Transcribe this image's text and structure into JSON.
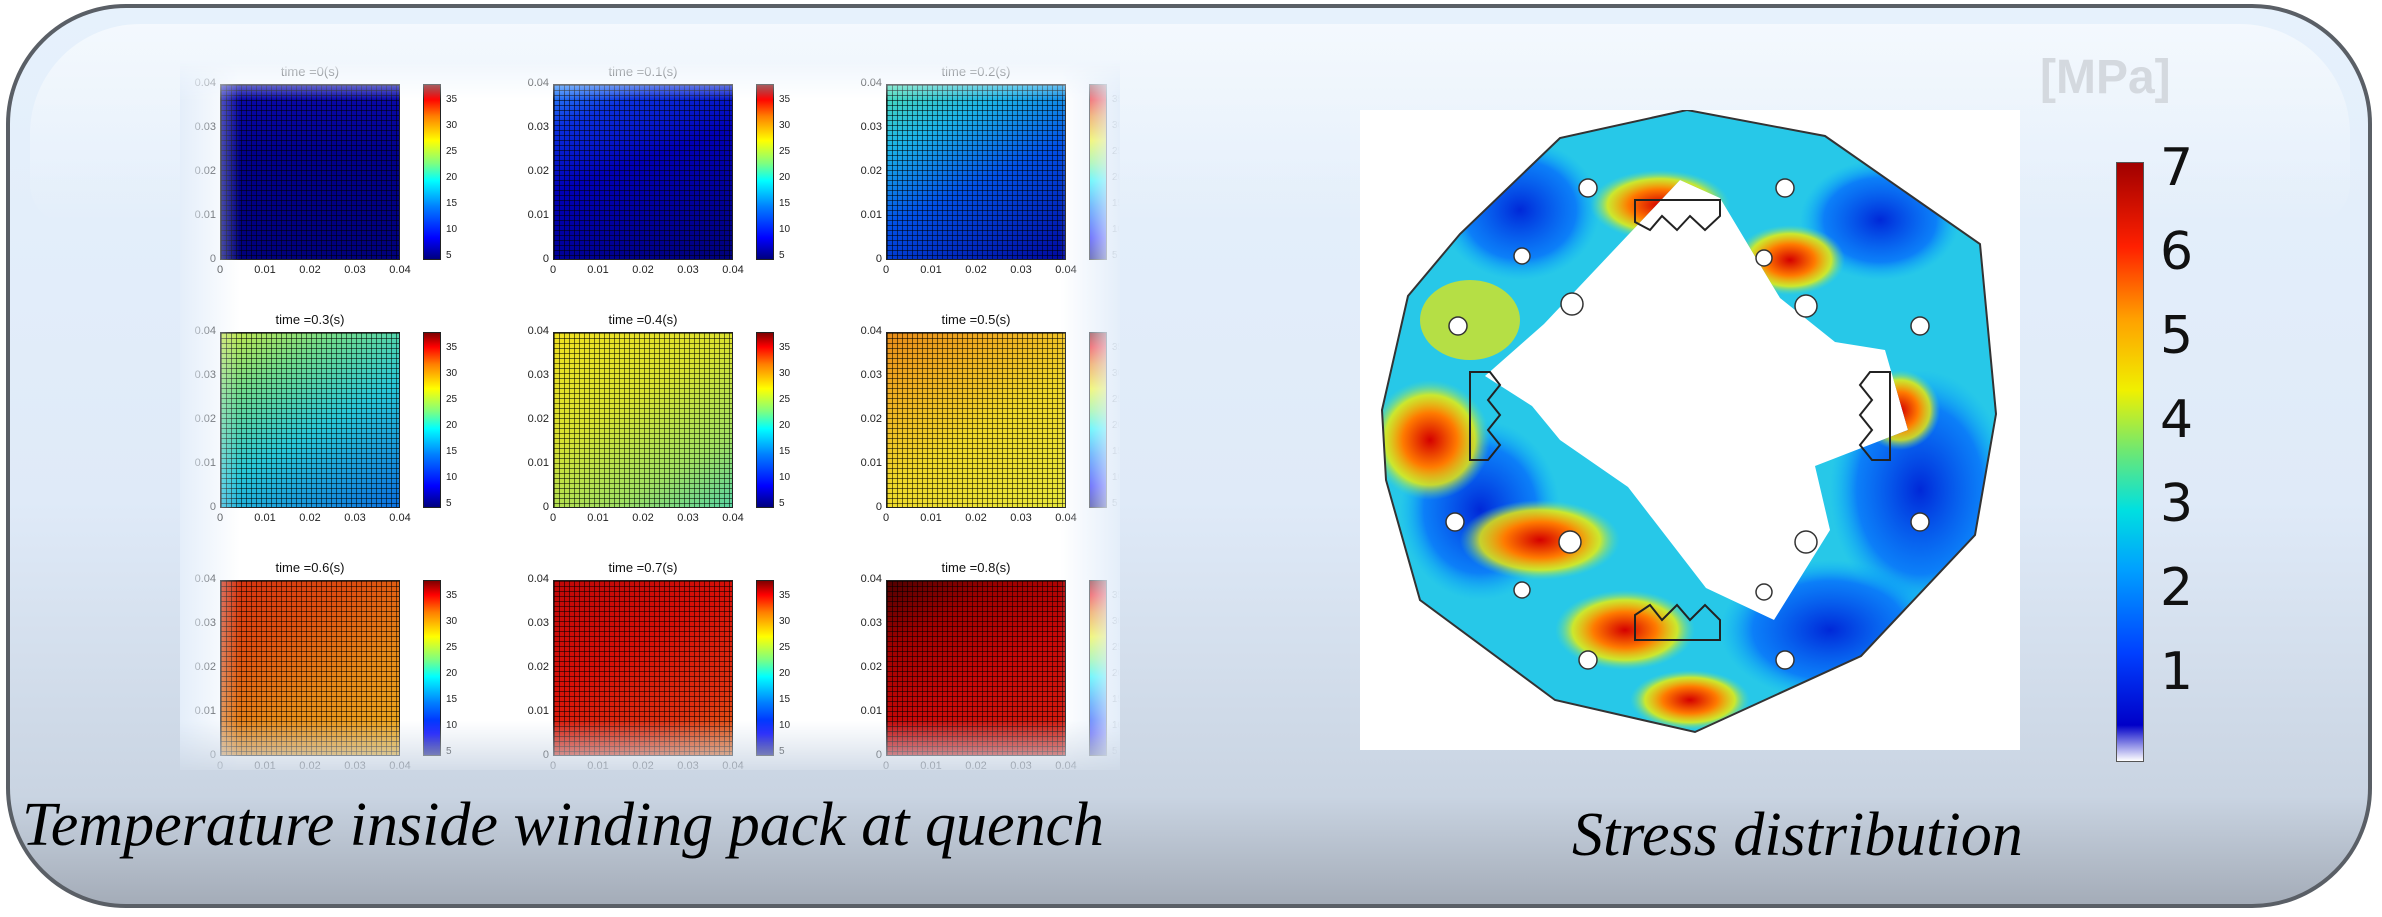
{
  "captions": {
    "left": "Temperature inside winding pack at quench",
    "right": "Stress distribution"
  },
  "heatmaps": [
    {
      "title": "time =0(s)"
    },
    {
      "title": "time =0.1(s)"
    },
    {
      "title": "time =0.2(s)"
    },
    {
      "title": "time =0.3(s)"
    },
    {
      "title": "time =0.4(s)"
    },
    {
      "title": "time =0.5(s)"
    },
    {
      "title": "time =0.6(s)"
    },
    {
      "title": "time =0.7(s)"
    },
    {
      "title": "time =0.8(s)"
    }
  ],
  "heat_axes": {
    "xticks": [
      "0",
      "0.01",
      "0.02",
      "0.03",
      "0.04"
    ],
    "yticks": [
      "0",
      "0.01",
      "0.02",
      "0.03",
      "0.04"
    ],
    "colorbar_ticks": [
      "5",
      "10",
      "15",
      "20",
      "25",
      "30",
      "35"
    ]
  },
  "stress": {
    "unit": "[MPa]",
    "colorbar_ticks": [
      "1",
      "2",
      "3",
      "4",
      "5",
      "6",
      "7"
    ]
  },
  "colors": {
    "panel_border": "#5a5f66",
    "panel_bg": "#e2edf9"
  }
}
